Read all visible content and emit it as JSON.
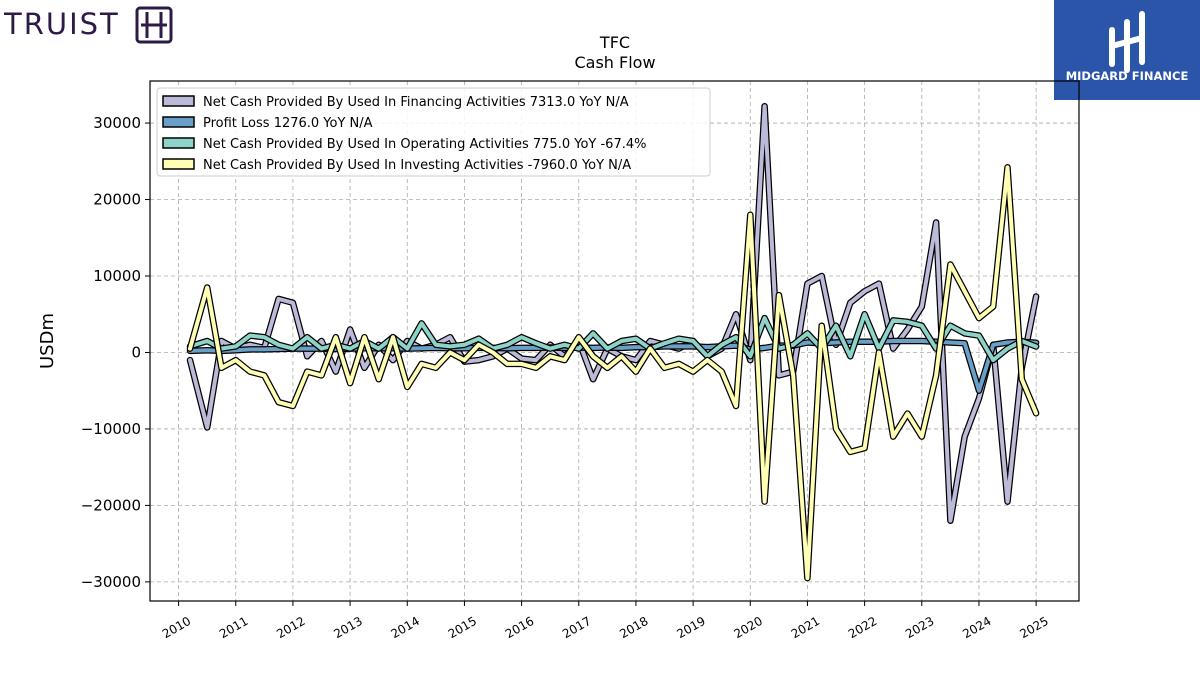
{
  "brand": {
    "left_logo_text": "TRUIST",
    "right_logo_text": "MIDGARD FINANCE"
  },
  "chart_data": {
    "type": "line",
    "title": "TFC",
    "subtitle": "Cash Flow",
    "xlabel": "",
    "ylabel": "USDm",
    "ylim": [
      -32500,
      35500
    ],
    "xlim": [
      2009.5,
      2025.75
    ],
    "yticks": [
      -30000,
      -20000,
      -10000,
      0,
      10000,
      20000,
      30000
    ],
    "ytick_labels": [
      "−30000",
      "−20000",
      "−10000",
      "0",
      "10000",
      "20000",
      "30000"
    ],
    "xticks": [
      "2010",
      "2011",
      "2012",
      "2013",
      "2014",
      "2015",
      "2016",
      "2017",
      "2018",
      "2019",
      "2020",
      "2021",
      "2022",
      "2023",
      "2024",
      "2025"
    ],
    "grid": true,
    "legend_position": "top-left",
    "legend": [
      "Net Cash Provided By Used In Financing Activities  7313.0 YoY N/A",
      "Profit Loss  1276.0 YoY N/A",
      "Net Cash Provided By Used In Operating Activities  775.0 YoY -67.4%",
      "Net Cash Provided By Used In Investing Activities  -7960.0 YoY N/A"
    ],
    "series": [
      {
        "name": "Net Cash Provided By Used In Financing Activities",
        "color": "#bcbad9",
        "points": [
          [
            2010.2,
            -1000
          ],
          [
            2010.5,
            -9800
          ],
          [
            2010.75,
            1500
          ],
          [
            2011.0,
            500
          ],
          [
            2011.25,
            1000
          ],
          [
            2011.5,
            600
          ],
          [
            2011.75,
            7000
          ],
          [
            2012.0,
            6500
          ],
          [
            2012.25,
            -500
          ],
          [
            2012.5,
            1500
          ],
          [
            2012.75,
            -2500
          ],
          [
            2013.0,
            3000
          ],
          [
            2013.25,
            -2000
          ],
          [
            2013.5,
            1000
          ],
          [
            2013.75,
            -1000
          ],
          [
            2014.0,
            1500
          ],
          [
            2014.25,
            500
          ],
          [
            2014.5,
            1000
          ],
          [
            2014.75,
            2000
          ],
          [
            2015.0,
            -1200
          ],
          [
            2015.25,
            -1000
          ],
          [
            2015.5,
            -500
          ],
          [
            2015.75,
            500
          ],
          [
            2016.0,
            -800
          ],
          [
            2016.25,
            -1000
          ],
          [
            2016.5,
            1000
          ],
          [
            2016.75,
            -500
          ],
          [
            2017.0,
            1500
          ],
          [
            2017.25,
            -3500
          ],
          [
            2017.5,
            500
          ],
          [
            2017.75,
            -500
          ],
          [
            2018.0,
            -1000
          ],
          [
            2018.25,
            1500
          ],
          [
            2018.5,
            1000
          ],
          [
            2018.75,
            500
          ],
          [
            2019.0,
            1500
          ],
          [
            2019.25,
            -500
          ],
          [
            2019.5,
            500
          ],
          [
            2019.75,
            5000
          ],
          [
            2020.0,
            -1000
          ],
          [
            2020.25,
            32200
          ],
          [
            2020.5,
            -3000
          ],
          [
            2020.75,
            -2500
          ],
          [
            2021.0,
            9000
          ],
          [
            2021.25,
            10000
          ],
          [
            2021.5,
            1000
          ],
          [
            2021.75,
            6500
          ],
          [
            2022.0,
            8000
          ],
          [
            2022.25,
            9000
          ],
          [
            2022.5,
            500
          ],
          [
            2022.75,
            3000
          ],
          [
            2023.0,
            6000
          ],
          [
            2023.25,
            17000
          ],
          [
            2023.5,
            -22000
          ],
          [
            2023.75,
            -11000
          ],
          [
            2024.0,
            -6000
          ],
          [
            2024.25,
            1000
          ],
          [
            2024.5,
            -19500
          ],
          [
            2024.75,
            -2000
          ],
          [
            2025.0,
            7313
          ]
        ]
      },
      {
        "name": "Profit Loss",
        "color": "#6a9fc7",
        "points": [
          [
            2010.2,
            200
          ],
          [
            2010.5,
            300
          ],
          [
            2010.75,
            200
          ],
          [
            2011.0,
            300
          ],
          [
            2011.25,
            400
          ],
          [
            2011.5,
            400
          ],
          [
            2011.75,
            450
          ],
          [
            2012.0,
            500
          ],
          [
            2012.25,
            500
          ],
          [
            2012.5,
            500
          ],
          [
            2012.75,
            450
          ],
          [
            2013.0,
            500
          ],
          [
            2013.25,
            550
          ],
          [
            2013.5,
            550
          ],
          [
            2013.75,
            550
          ],
          [
            2014.0,
            500
          ],
          [
            2014.25,
            550
          ],
          [
            2014.5,
            600
          ],
          [
            2014.75,
            550
          ],
          [
            2015.0,
            550
          ],
          [
            2015.25,
            600
          ],
          [
            2015.5,
            600
          ],
          [
            2015.75,
            550
          ],
          [
            2016.0,
            600
          ],
          [
            2016.25,
            600
          ],
          [
            2016.5,
            650
          ],
          [
            2016.75,
            600
          ],
          [
            2017.0,
            650
          ],
          [
            2017.25,
            600
          ],
          [
            2017.5,
            650
          ],
          [
            2017.75,
            600
          ],
          [
            2018.0,
            700
          ],
          [
            2018.25,
            700
          ],
          [
            2018.5,
            800
          ],
          [
            2018.75,
            800
          ],
          [
            2019.0,
            800
          ],
          [
            2019.25,
            700
          ],
          [
            2019.5,
            800
          ],
          [
            2019.75,
            900
          ],
          [
            2020.0,
            400
          ],
          [
            2020.25,
            600
          ],
          [
            2020.5,
            900
          ],
          [
            2020.75,
            900
          ],
          [
            2021.0,
            1300
          ],
          [
            2021.25,
            1200
          ],
          [
            2021.5,
            1300
          ],
          [
            2021.75,
            1400
          ],
          [
            2022.0,
            1400
          ],
          [
            2022.25,
            1400
          ],
          [
            2022.5,
            1500
          ],
          [
            2022.75,
            1500
          ],
          [
            2023.0,
            1500
          ],
          [
            2023.25,
            1400
          ],
          [
            2023.5,
            1300
          ],
          [
            2023.75,
            1200
          ],
          [
            2024.0,
            -5000
          ],
          [
            2024.25,
            1000
          ],
          [
            2024.5,
            1300
          ],
          [
            2024.75,
            1400
          ],
          [
            2025.0,
            1276
          ]
        ]
      },
      {
        "name": "Net Cash Provided By Used In Operating Activities",
        "color": "#8dd3c7",
        "points": [
          [
            2010.2,
            800
          ],
          [
            2010.5,
            1500
          ],
          [
            2010.75,
            500
          ],
          [
            2011.0,
            800
          ],
          [
            2011.25,
            2200
          ],
          [
            2011.5,
            2000
          ],
          [
            2011.75,
            1000
          ],
          [
            2012.0,
            500
          ],
          [
            2012.25,
            2000
          ],
          [
            2012.5,
            500
          ],
          [
            2012.75,
            1000
          ],
          [
            2013.0,
            500
          ],
          [
            2013.25,
            1500
          ],
          [
            2013.5,
            500
          ],
          [
            2013.75,
            2000
          ],
          [
            2014.0,
            500
          ],
          [
            2014.25,
            3800
          ],
          [
            2014.5,
            1000
          ],
          [
            2014.75,
            800
          ],
          [
            2015.0,
            1000
          ],
          [
            2015.25,
            1800
          ],
          [
            2015.5,
            500
          ],
          [
            2015.75,
            1000
          ],
          [
            2016.0,
            2000
          ],
          [
            2016.25,
            1200
          ],
          [
            2016.5,
            500
          ],
          [
            2016.75,
            1000
          ],
          [
            2017.0,
            500
          ],
          [
            2017.25,
            2500
          ],
          [
            2017.5,
            500
          ],
          [
            2017.75,
            1500
          ],
          [
            2018.0,
            1800
          ],
          [
            2018.25,
            500
          ],
          [
            2018.5,
            1200
          ],
          [
            2018.75,
            1800
          ],
          [
            2019.0,
            1500
          ],
          [
            2019.25,
            -500
          ],
          [
            2019.5,
            1000
          ],
          [
            2019.75,
            2000
          ],
          [
            2020.0,
            -500
          ],
          [
            2020.25,
            4500
          ],
          [
            2020.5,
            500
          ],
          [
            2020.75,
            1000
          ],
          [
            2021.0,
            2500
          ],
          [
            2021.25,
            500
          ],
          [
            2021.5,
            3500
          ],
          [
            2021.75,
            -500
          ],
          [
            2022.0,
            5000
          ],
          [
            2022.25,
            500
          ],
          [
            2022.5,
            4200
          ],
          [
            2022.75,
            4000
          ],
          [
            2023.0,
            3500
          ],
          [
            2023.25,
            500
          ],
          [
            2023.5,
            3500
          ],
          [
            2023.75,
            2500
          ],
          [
            2024.0,
            2200
          ],
          [
            2024.25,
            -1000
          ],
          [
            2024.5,
            500
          ],
          [
            2024.75,
            1500
          ],
          [
            2025.0,
            775
          ]
        ]
      },
      {
        "name": "Net Cash Provided By Used In Investing Activities",
        "color": "#ffffb3",
        "points": [
          [
            2010.2,
            500
          ],
          [
            2010.5,
            8500
          ],
          [
            2010.75,
            -2000
          ],
          [
            2011.0,
            -1000
          ],
          [
            2011.25,
            -2500
          ],
          [
            2011.5,
            -3000
          ],
          [
            2011.75,
            -6500
          ],
          [
            2012.0,
            -7000
          ],
          [
            2012.25,
            -2500
          ],
          [
            2012.5,
            -3000
          ],
          [
            2012.75,
            2000
          ],
          [
            2013.0,
            -4000
          ],
          [
            2013.25,
            2000
          ],
          [
            2013.5,
            -3500
          ],
          [
            2013.75,
            2000
          ],
          [
            2014.0,
            -4500
          ],
          [
            2014.25,
            -1500
          ],
          [
            2014.5,
            -2000
          ],
          [
            2014.75,
            0
          ],
          [
            2015.0,
            -1000
          ],
          [
            2015.25,
            1000
          ],
          [
            2015.5,
            0
          ],
          [
            2015.75,
            -1500
          ],
          [
            2016.0,
            -1500
          ],
          [
            2016.25,
            -2000
          ],
          [
            2016.5,
            -500
          ],
          [
            2016.75,
            -1000
          ],
          [
            2017.0,
            2000
          ],
          [
            2017.25,
            -500
          ],
          [
            2017.5,
            -2000
          ],
          [
            2017.75,
            -500
          ],
          [
            2018.0,
            -2500
          ],
          [
            2018.25,
            500
          ],
          [
            2018.5,
            -2000
          ],
          [
            2018.75,
            -1500
          ],
          [
            2019.0,
            -2500
          ],
          [
            2019.25,
            -1000
          ],
          [
            2019.5,
            -2500
          ],
          [
            2019.75,
            -7000
          ],
          [
            2020.0,
            18000
          ],
          [
            2020.25,
            -19500
          ],
          [
            2020.5,
            7500
          ],
          [
            2020.75,
            -3000
          ],
          [
            2021.0,
            -29500
          ],
          [
            2021.25,
            3500
          ],
          [
            2021.5,
            -10000
          ],
          [
            2021.75,
            -13000
          ],
          [
            2022.0,
            -12500
          ],
          [
            2022.25,
            0
          ],
          [
            2022.5,
            -11000
          ],
          [
            2022.75,
            -8000
          ],
          [
            2023.0,
            -11000
          ],
          [
            2023.25,
            -3000
          ],
          [
            2023.5,
            11500
          ],
          [
            2023.75,
            8000
          ],
          [
            2024.0,
            4500
          ],
          [
            2024.25,
            6000
          ],
          [
            2024.5,
            24200
          ],
          [
            2024.75,
            -3500
          ],
          [
            2025.0,
            -7960
          ]
        ]
      }
    ]
  }
}
